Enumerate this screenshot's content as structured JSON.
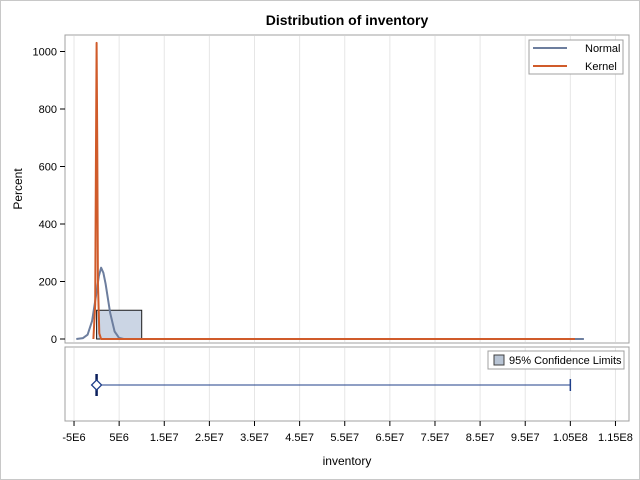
{
  "chart_data": [
    {
      "type": "histogram",
      "title": "Distribution of inventory",
      "ylabel": "Percent",
      "xlabel": "",
      "ylim": [
        0,
        1040
      ],
      "y_ticks": [
        0,
        200,
        400,
        600,
        800,
        1000
      ],
      "y_tick_labels": [
        "0",
        "200",
        "400",
        "600",
        "800",
        "1000"
      ],
      "xlim": [
        -7000000,
        118000000
      ],
      "bars": [
        {
          "x_start": 0,
          "x_end": 10000000,
          "value": 100
        }
      ],
      "series": [
        {
          "name": "Normal",
          "color": "#6d7e9e",
          "x": [
            -4500000,
            -3000000,
            -2000000,
            -1000000,
            0,
            500000,
            1000000,
            1500000,
            2000000,
            3000000,
            4000000,
            5000000,
            6000000,
            108000000
          ],
          "y": [
            0,
            3,
            15,
            63,
            164,
            218,
            248,
            230,
            192,
            92,
            26,
            4,
            0,
            0
          ]
        },
        {
          "name": "Kernel",
          "color": "#d05b2a",
          "x": [
            -700000,
            -300000,
            -150000,
            0,
            150000,
            300000,
            600000,
            1000000,
            2000000,
            106000000
          ],
          "y": [
            0,
            120,
            600,
            1030,
            650,
            200,
            20,
            0,
            0,
            0
          ]
        }
      ],
      "legend": {
        "placement": "top-right",
        "entries": [
          "Normal",
          "Kernel"
        ]
      }
    },
    {
      "type": "interval",
      "xlabel": "inventory",
      "xlim": [
        -7000000,
        118000000
      ],
      "x_ticks": [
        -5000000,
        5000000,
        15000000,
        25000000,
        35000000,
        45000000,
        55000000,
        65000000,
        75000000,
        85000000,
        95000000,
        105000000,
        115000000
      ],
      "x_tick_labels": [
        "-5E6",
        "5E6",
        "1.5E7",
        "2.5E7",
        "3.5E7",
        "4.5E7",
        "5.5E7",
        "6.5E7",
        "7.5E7",
        "8.5E7",
        "9.5E7",
        "1.05E8",
        "1.15E8"
      ],
      "median": 0,
      "mean": 0,
      "interval": [
        0,
        105000000
      ],
      "legend": {
        "placement": "top-right",
        "entries": [
          "95% Confidence Limits"
        ]
      }
    }
  ]
}
